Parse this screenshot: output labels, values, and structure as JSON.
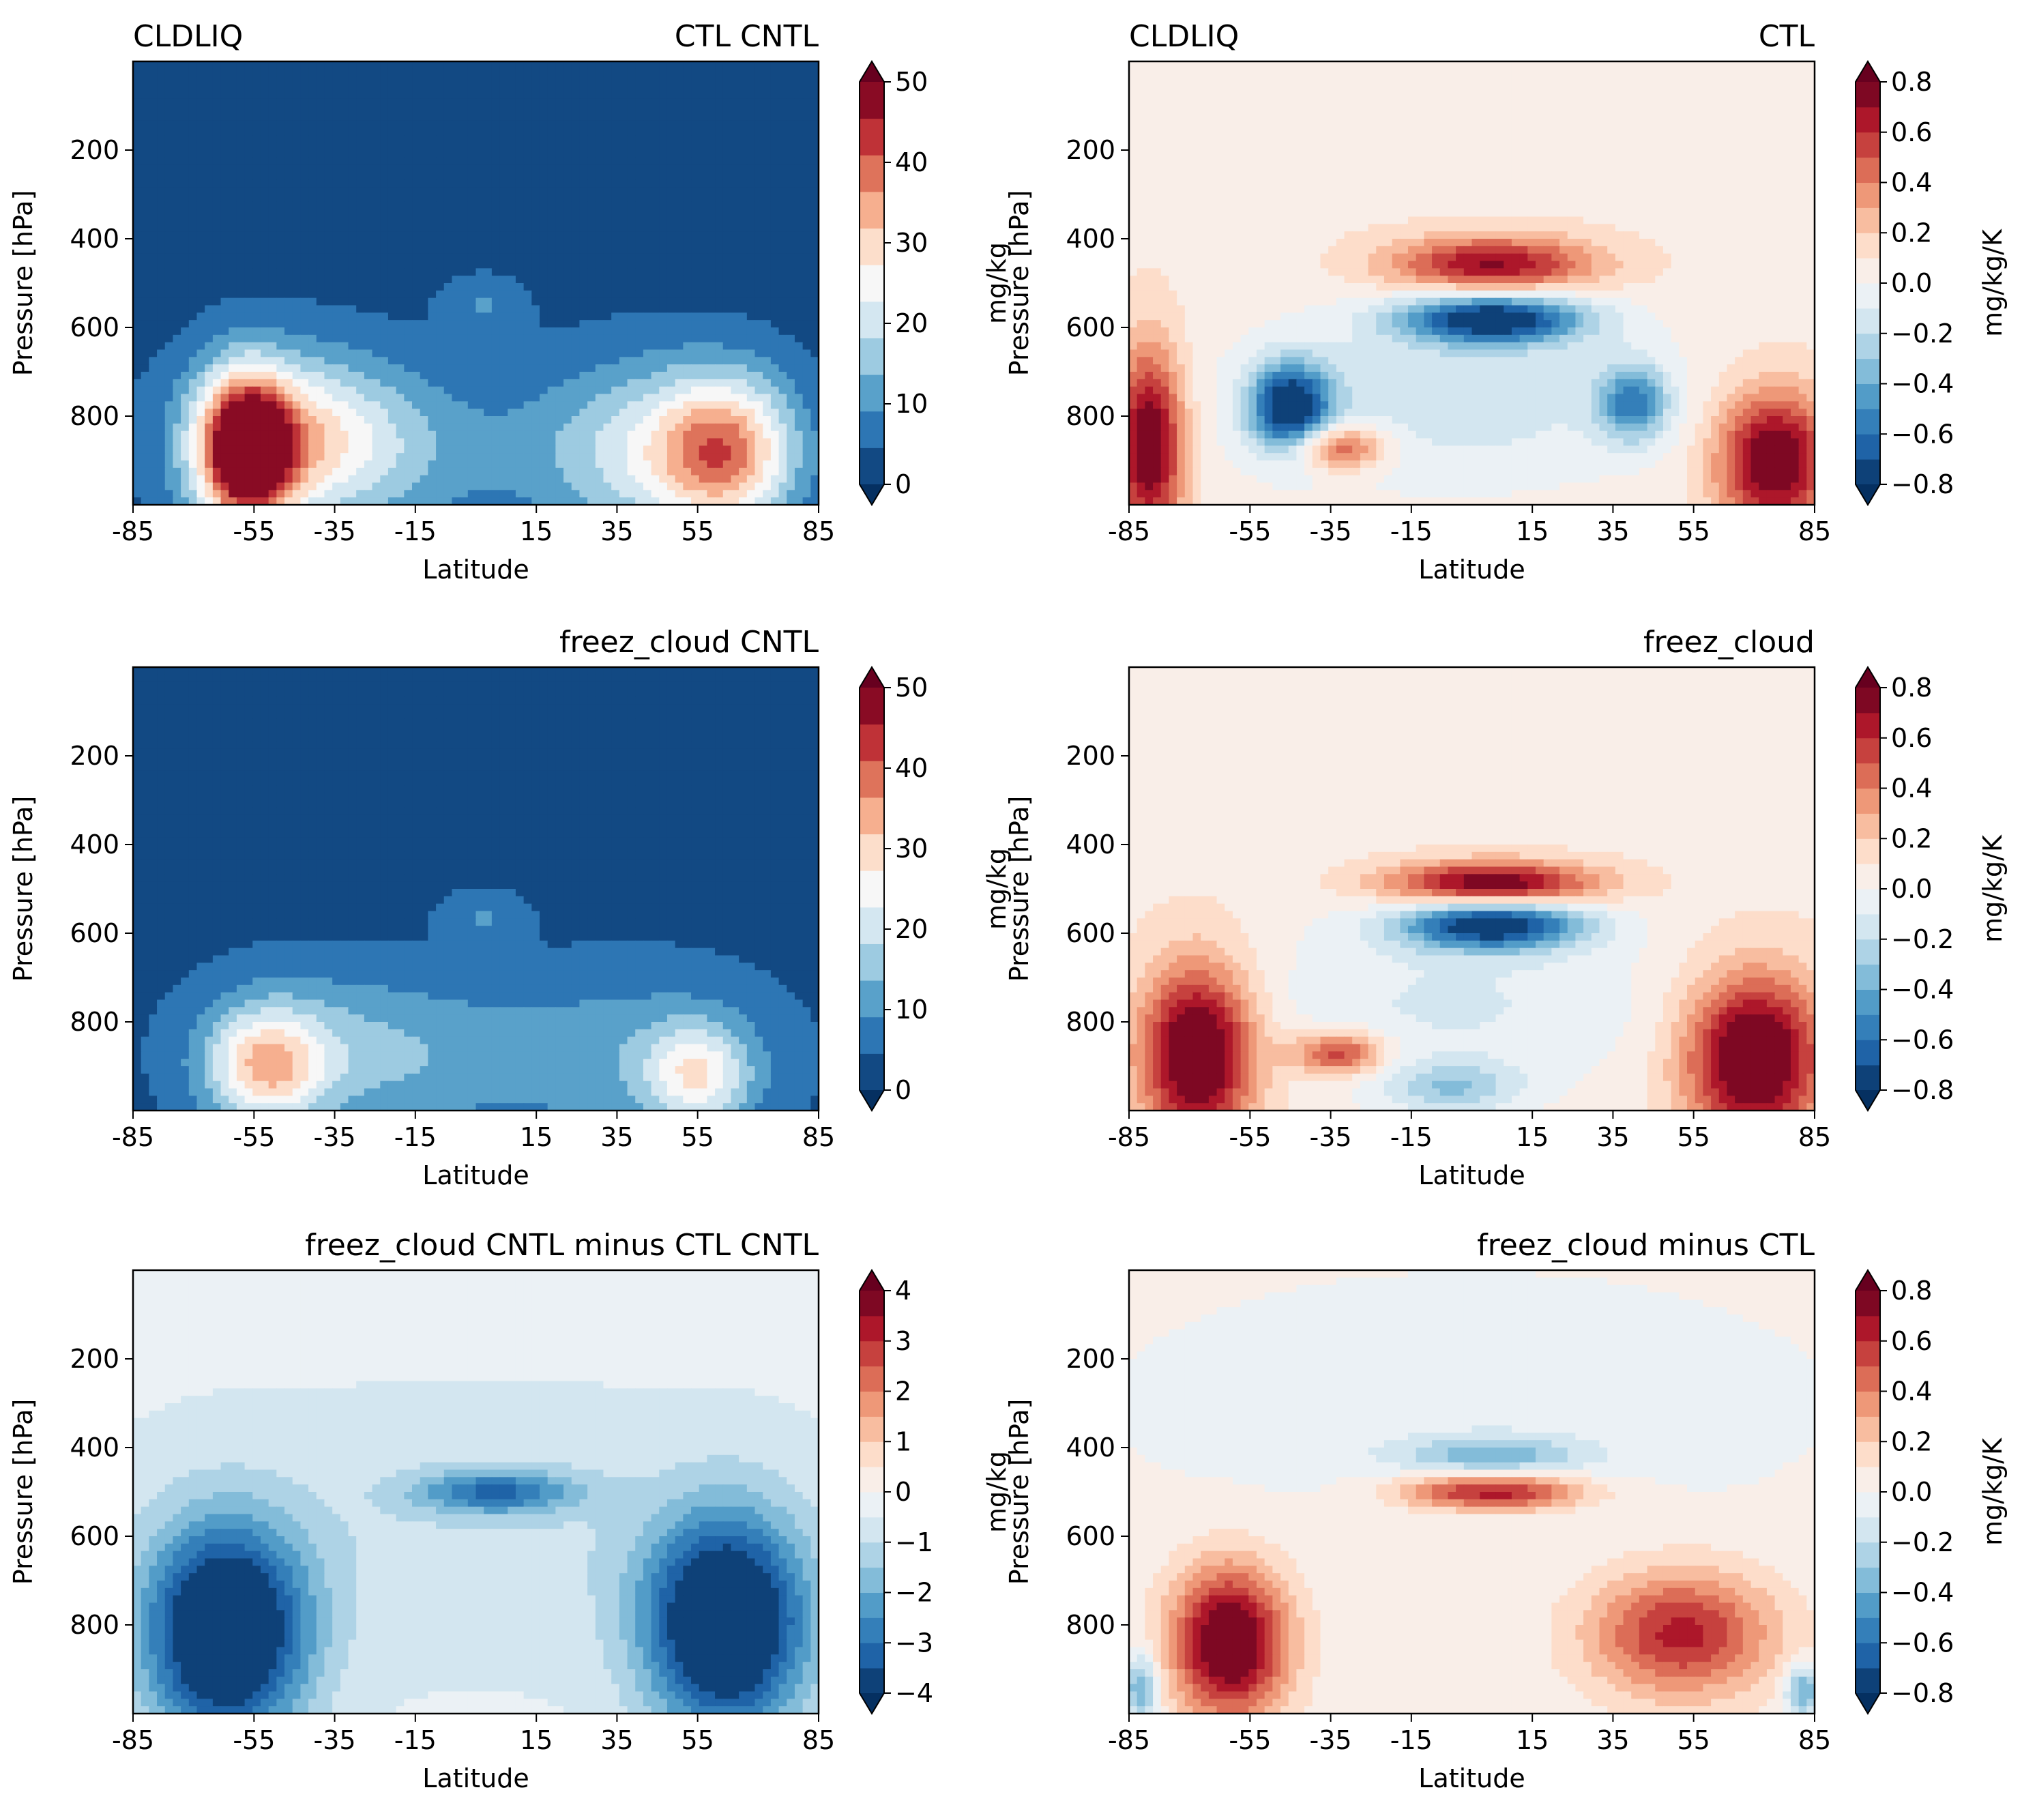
{
  "chart_data": [
    {
      "type": "contour",
      "title_left": "CLDLIQ",
      "title_right": "CTL CNTL",
      "xlabel": "Latitude",
      "ylabel": "Pressure [hPa]",
      "x_ticks": [
        "-85",
        "-55",
        "-35",
        "-15",
        "15",
        "35",
        "55",
        "85"
      ],
      "y_ticks": [
        "200",
        "400",
        "600",
        "800"
      ],
      "xlim": [
        -85,
        85
      ],
      "ylim": [
        1000,
        0
      ],
      "colorbar": {
        "label": "mg/kg",
        "ticks": [
          "0",
          "10",
          "20",
          "30",
          "40",
          "50"
        ],
        "min": 0,
        "max": 50,
        "levels": 11,
        "extend": "both"
      },
      "background_level": 0.06,
      "features": [
        {
          "lat": -57,
          "p": 880,
          "amp": 0.93,
          "sx": 8,
          "sy": 120
        },
        {
          "lat": -45,
          "p": 850,
          "amp": 0.45,
          "sx": 18,
          "sy": 130
        },
        {
          "lat": -20,
          "p": 880,
          "amp": 0.15,
          "sx": 25,
          "sy": 130
        },
        {
          "lat": 2,
          "p": 550,
          "amp": 0.12,
          "sx": 7,
          "sy": 45
        },
        {
          "lat": 62,
          "p": 880,
          "amp": 0.62,
          "sx": 12,
          "sy": 120
        },
        {
          "lat": 40,
          "p": 880,
          "amp": 0.32,
          "sx": 18,
          "sy": 140
        }
      ]
    },
    {
      "type": "contour",
      "title_left": "CLDLIQ",
      "title_right": "CTL",
      "xlabel": "Latitude",
      "ylabel": "Pressure [hPa]",
      "x_ticks": [
        "-85",
        "-55",
        "-35",
        "-15",
        "15",
        "35",
        "55",
        "85"
      ],
      "y_ticks": [
        "200",
        "400",
        "600",
        "800"
      ],
      "xlim": [
        -85,
        85
      ],
      "ylim": [
        1000,
        0
      ],
      "colorbar": {
        "label": "mg/kg/K",
        "ticks": [
          "0.8",
          "0.6",
          "0.4",
          "0.2",
          "0.0",
          "−0.2",
          "−0.4",
          "−0.6",
          "−0.8"
        ],
        "min": -0.8,
        "max": 0.8,
        "levels": 16,
        "extend": "both"
      },
      "background_level": 0.55,
      "features": [
        {
          "lat": -80,
          "p": 860,
          "amp": 0.5,
          "sx": 6,
          "sy": 150
        },
        {
          "lat": 5,
          "p": 460,
          "amp": 0.42,
          "sx": 18,
          "sy": 45
        },
        {
          "lat": 5,
          "p": 580,
          "amp": -0.55,
          "sx": 16,
          "sy": 40
        },
        {
          "lat": -45,
          "p": 780,
          "amp": -0.55,
          "sx": 7,
          "sy": 70
        },
        {
          "lat": -33,
          "p": 870,
          "amp": 0.35,
          "sx": 8,
          "sy": 35
        },
        {
          "lat": 40,
          "p": 770,
          "amp": -0.35,
          "sx": 6,
          "sy": 60
        },
        {
          "lat": 75,
          "p": 900,
          "amp": 0.5,
          "sx": 10,
          "sy": 110
        },
        {
          "lat": -5,
          "p": 760,
          "amp": -0.15,
          "sx": 40,
          "sy": 150
        }
      ]
    },
    {
      "type": "contour",
      "title_left": "",
      "title_right": "freez_cloud CNTL",
      "xlabel": "Latitude",
      "ylabel": "Pressure [hPa]",
      "x_ticks": [
        "-85",
        "-55",
        "-35",
        "-15",
        "15",
        "35",
        "55",
        "85"
      ],
      "y_ticks": [
        "200",
        "400",
        "600",
        "800"
      ],
      "xlim": [
        -85,
        85
      ],
      "ylim": [
        1000,
        0
      ],
      "colorbar": {
        "label": "mg/kg",
        "ticks": [
          "0",
          "10",
          "20",
          "30",
          "40",
          "50"
        ],
        "min": 0,
        "max": 50,
        "levels": 11,
        "extend": "both"
      },
      "background_level": 0.06,
      "features": [
        {
          "lat": -52,
          "p": 900,
          "amp": 0.48,
          "sx": 10,
          "sy": 90
        },
        {
          "lat": -40,
          "p": 860,
          "amp": 0.15,
          "sx": 22,
          "sy": 130
        },
        {
          "lat": -15,
          "p": 880,
          "amp": 0.13,
          "sx": 25,
          "sy": 120
        },
        {
          "lat": 2,
          "p": 560,
          "amp": 0.12,
          "sx": 7,
          "sy": 40
        },
        {
          "lat": 55,
          "p": 920,
          "amp": 0.38,
          "sx": 9,
          "sy": 80
        },
        {
          "lat": 40,
          "p": 880,
          "amp": 0.17,
          "sx": 25,
          "sy": 140
        }
      ]
    },
    {
      "type": "contour",
      "title_left": "",
      "title_right": "freez_cloud",
      "xlabel": "Latitude",
      "ylabel": "Pressure [hPa]",
      "x_ticks": [
        "-85",
        "-55",
        "-35",
        "-15",
        "15",
        "35",
        "55",
        "85"
      ],
      "y_ticks": [
        "200",
        "400",
        "600",
        "800"
      ],
      "xlim": [
        -85,
        85
      ],
      "ylim": [
        1000,
        0
      ],
      "colorbar": {
        "label": "mg/kg/K",
        "ticks": [
          "0.8",
          "0.6",
          "0.4",
          "0.2",
          "0.0",
          "−0.2",
          "−0.4",
          "−0.6",
          "−0.8"
        ],
        "min": -0.8,
        "max": 0.8,
        "levels": 16,
        "extend": "both"
      },
      "background_level": 0.55,
      "features": [
        {
          "lat": -68,
          "p": 870,
          "amp": 0.55,
          "sx": 10,
          "sy": 140
        },
        {
          "lat": 5,
          "p": 490,
          "amp": 0.5,
          "sx": 18,
          "sy": 35
        },
        {
          "lat": 5,
          "p": 580,
          "amp": -0.55,
          "sx": 16,
          "sy": 40
        },
        {
          "lat": -33,
          "p": 870,
          "amp": 0.35,
          "sx": 8,
          "sy": 35
        },
        {
          "lat": 70,
          "p": 880,
          "amp": 0.55,
          "sx": 12,
          "sy": 130
        },
        {
          "lat": -5,
          "p": 760,
          "amp": -0.12,
          "sx": 40,
          "sy": 150
        },
        {
          "lat": -5,
          "p": 950,
          "amp": -0.2,
          "sx": 12,
          "sy": 40
        }
      ]
    },
    {
      "type": "contour",
      "title_left": "",
      "title_right": "freez_cloud CNTL minus CTL CNTL",
      "xlabel": "Latitude",
      "ylabel": "Pressure [hPa]",
      "x_ticks": [
        "-85",
        "-55",
        "-35",
        "-15",
        "15",
        "35",
        "55",
        "85"
      ],
      "y_ticks": [
        "200",
        "400",
        "600",
        "800"
      ],
      "xlim": [
        -85,
        85
      ],
      "ylim": [
        1000,
        0
      ],
      "colorbar": {
        "label": "mg/kg",
        "ticks": [
          "4",
          "3",
          "2",
          "1",
          "0",
          "−1",
          "−2",
          "−3",
          "−4"
        ],
        "min": -4,
        "max": 4,
        "levels": 16,
        "extend": "both"
      },
      "background_level": 0.45,
      "features": [
        {
          "lat": -62,
          "p": 820,
          "amp": -0.6,
          "sx": 14,
          "sy": 170
        },
        {
          "lat": 62,
          "p": 800,
          "amp": -0.6,
          "sx": 14,
          "sy": 170
        },
        {
          "lat": 5,
          "p": 500,
          "amp": -0.3,
          "sx": 14,
          "sy": 35
        },
        {
          "lat": 0,
          "p": 600,
          "amp": -0.06,
          "sx": 60,
          "sy": 200
        }
      ]
    },
    {
      "type": "contour",
      "title_left": "",
      "title_right": "freez_cloud minus CTL",
      "xlabel": "Latitude",
      "ylabel": "Pressure [hPa]",
      "x_ticks": [
        "-85",
        "-55",
        "-35",
        "-15",
        "15",
        "35",
        "55",
        "85"
      ],
      "y_ticks": [
        "200",
        "400",
        "600",
        "800"
      ],
      "xlim": [
        -85,
        85
      ],
      "ylim": [
        1000,
        0
      ],
      "colorbar": {
        "label": "mg/kg/K",
        "ticks": [
          "0.8",
          "0.6",
          "0.4",
          "0.2",
          "0.0",
          "−0.2",
          "−0.4",
          "−0.6",
          "−0.8"
        ],
        "min": -0.8,
        "max": 0.8,
        "levels": 16,
        "extend": "both"
      },
      "background_level": 0.52,
      "features": [
        {
          "lat": -60,
          "p": 840,
          "amp": 0.55,
          "sx": 10,
          "sy": 120
        },
        {
          "lat": 5,
          "p": 500,
          "amp": 0.42,
          "sx": 16,
          "sy": 30
        },
        {
          "lat": 5,
          "p": 420,
          "amp": -0.22,
          "sx": 16,
          "sy": 30
        },
        {
          "lat": 52,
          "p": 820,
          "amp": 0.38,
          "sx": 16,
          "sy": 100
        },
        {
          "lat": 82,
          "p": 950,
          "amp": -0.3,
          "sx": 3,
          "sy": 40
        },
        {
          "lat": -82,
          "p": 940,
          "amp": -0.3,
          "sx": 3,
          "sy": 50
        },
        {
          "lat": 0,
          "p": 300,
          "amp": -0.06,
          "sx": 60,
          "sy": 200
        }
      ]
    }
  ]
}
